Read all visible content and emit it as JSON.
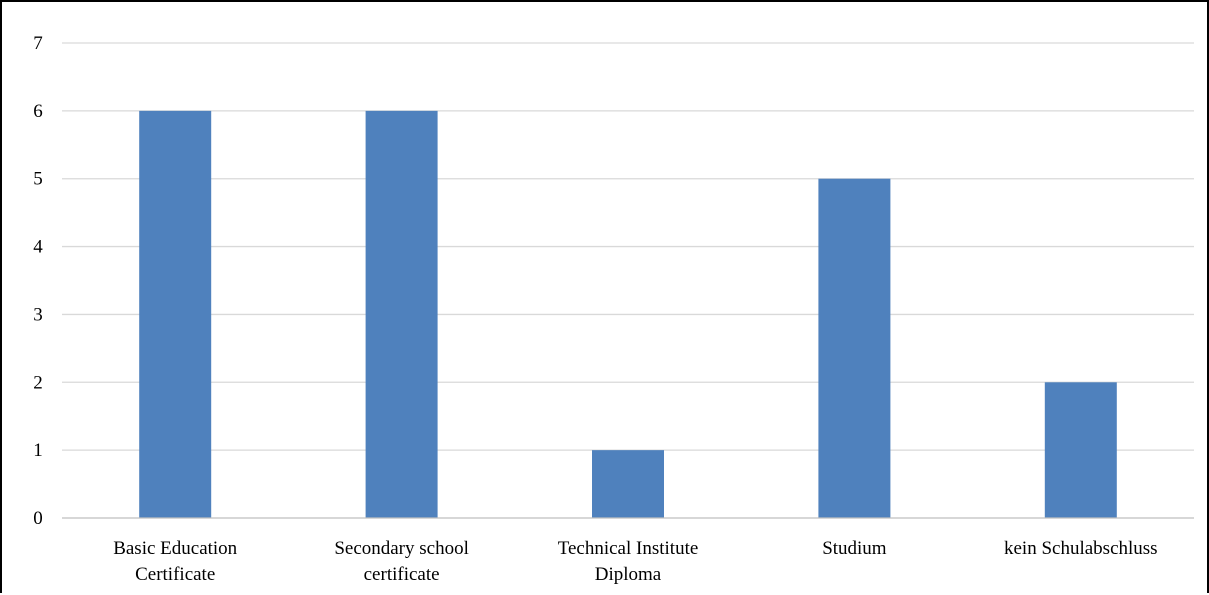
{
  "chart_data": {
    "type": "bar",
    "title": "",
    "xlabel": "",
    "ylabel": "",
    "categories": [
      [
        "Basic Education",
        "Certificate"
      ],
      [
        "Secondary school",
        "certificate"
      ],
      [
        "Technical Institute",
        "Diploma"
      ],
      [
        "Studium"
      ],
      [
        "kein Schulabschluss"
      ]
    ],
    "values": [
      6,
      6,
      1,
      5,
      2
    ],
    "ylim": [
      0,
      7
    ],
    "yticks": [
      "0",
      "1",
      "2",
      "3",
      "4",
      "5",
      "6",
      "7"
    ],
    "grid": true,
    "legend": "none",
    "colors": {
      "bar": "#4f81bd",
      "grid": "#d9d9d9",
      "axis": "#bfbfbf"
    }
  }
}
